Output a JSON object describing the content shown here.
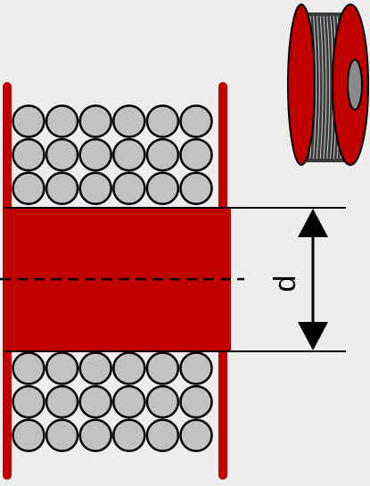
{
  "diagram": {
    "dimension_label": "d",
    "colors": {
      "background": "#edeeec",
      "flange": "#c10000",
      "core": "#c10000",
      "wire_fill": "#c2c1c4",
      "wire_stroke": "#000000",
      "line": "#000000",
      "spool_dark": "#333333"
    },
    "winding": {
      "columns": 6,
      "rows_top": 3,
      "rows_bottom": 3
    }
  }
}
